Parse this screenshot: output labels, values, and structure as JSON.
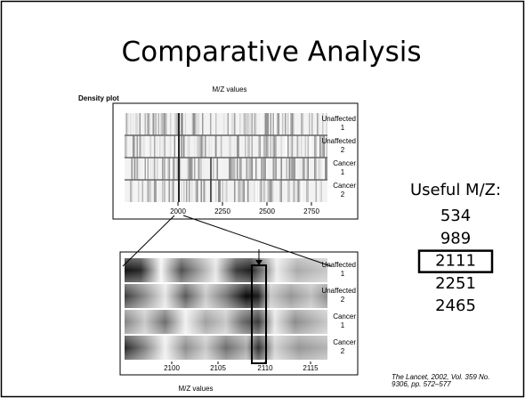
{
  "slide": {
    "title": "Comparative Analysis",
    "citation": [
      "The Lancet, 2002, Vol. 359 No.",
      "9306, pp. 572–577"
    ]
  },
  "figure": {
    "label": "Density plot",
    "top_caption": "M/Z values",
    "top_panel": {
      "rows": [
        {
          "name": "Unaffected",
          "number": "1"
        },
        {
          "name": "Unaffected",
          "number": "2"
        },
        {
          "name": "Cancer",
          "number": "1"
        },
        {
          "name": "Cancer",
          "number": "2"
        }
      ],
      "ticks": [
        "2000",
        "2250",
        "2500",
        "2750"
      ]
    },
    "bottom_panel": {
      "rows": [
        {
          "name": "Unaffected",
          "number": "1"
        },
        {
          "name": "Unaffected",
          "number": "2"
        },
        {
          "name": "Cancer",
          "number": "1"
        },
        {
          "name": "Cancer",
          "number": "2"
        }
      ],
      "ticks": [
        "2100",
        "2105",
        "2110",
        "2115"
      ],
      "axis_label": "M/Z values"
    }
  },
  "useful": {
    "heading": "Useful M/Z:",
    "values": [
      "534",
      "989",
      "2111",
      "2251",
      "2465"
    ],
    "highlighted": 2
  }
}
